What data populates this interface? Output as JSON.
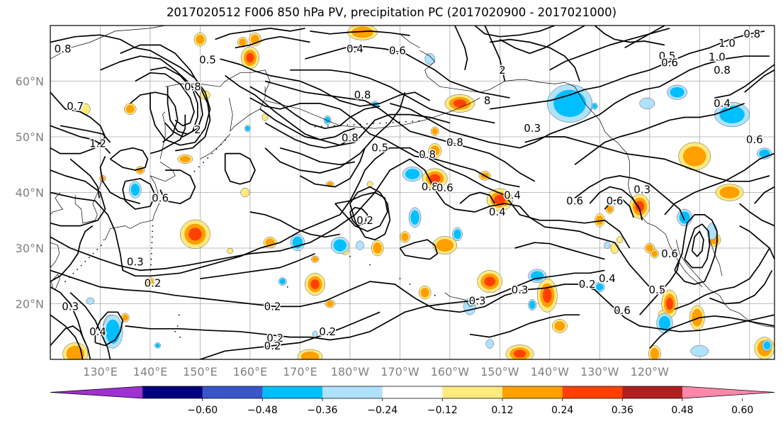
{
  "title": "2017020512 F006 850 hPa PV, precipitation PC (2017020900 - 2017021000)",
  "map": {
    "lat_ticks": [
      "60°N",
      "50°N",
      "40°N",
      "30°N",
      "20°N"
    ],
    "lon_ticks": [
      "130°E",
      "140°E",
      "150°E",
      "160°E",
      "170°E",
      "180°W",
      "170°W",
      "160°W",
      "150°W",
      "140°W",
      "130°W",
      "120°W"
    ],
    "contour_labels": [
      {
        "text": "0.8",
        "lon": 122.5,
        "lat": 65.8
      },
      {
        "text": "0.7",
        "lon": 125.0,
        "lat": 55.5
      },
      {
        "text": "1.2",
        "lon": 129.5,
        "lat": 48.8
      },
      {
        "text": "0.8",
        "lon": 148.5,
        "lat": 59.0
      },
      {
        "text": "2",
        "lon": 149.5,
        "lat": 51.3
      },
      {
        "text": "0.5",
        "lon": 151.5,
        "lat": 63.8
      },
      {
        "text": "0.6",
        "lon": 142.0,
        "lat": 39.0
      },
      {
        "text": "0.4",
        "lon": 181.0,
        "lat": 65.8
      },
      {
        "text": "0.6",
        "lon": 189.5,
        "lat": 65.5
      },
      {
        "text": "0.8",
        "lon": 182.5,
        "lat": 57.5
      },
      {
        "text": "0.8",
        "lon": 180.0,
        "lat": 49.8
      },
      {
        "text": "0.5",
        "lon": 186.0,
        "lat": 48.0
      },
      {
        "text": "0.2",
        "lon": 183.0,
        "lat": 35.0
      },
      {
        "text": "0.3",
        "lon": 137.0,
        "lat": 27.5
      },
      {
        "text": "0.2",
        "lon": 140.5,
        "lat": 23.7
      },
      {
        "text": "0.2",
        "lon": 164.5,
        "lat": 19.5
      },
      {
        "text": "0.2",
        "lon": 165.0,
        "lat": 13.8
      },
      {
        "text": "0.2",
        "lon": 164.5,
        "lat": 12.4
      },
      {
        "text": "0.2",
        "lon": 175.5,
        "lat": 15.0
      },
      {
        "text": "0.4",
        "lon": 129.5,
        "lat": 15.0
      },
      {
        "text": "0.3",
        "lon": 124.0,
        "lat": 19.5
      },
      {
        "text": "0.4",
        "lon": 209.5,
        "lat": 36.5
      },
      {
        "text": "0.8",
        "lon": 195.5,
        "lat": 46.8
      },
      {
        "text": "0.8",
        "lon": 196.0,
        "lat": 41.0
      },
      {
        "text": "0.6",
        "lon": 199.0,
        "lat": 40.8
      },
      {
        "text": "0.8",
        "lon": 201.0,
        "lat": 49.0
      },
      {
        "text": "0.4",
        "lon": 212.5,
        "lat": 39.5
      },
      {
        "text": "8",
        "lon": 207.5,
        "lat": 56.5
      },
      {
        "text": "0.3",
        "lon": 216.5,
        "lat": 51.5
      },
      {
        "text": "0.3",
        "lon": 214.0,
        "lat": 22.5
      },
      {
        "text": "0.3",
        "lon": 205.5,
        "lat": 20.5
      },
      {
        "text": "0.6",
        "lon": 225.0,
        "lat": 38.5
      },
      {
        "text": "0.3",
        "lon": 238.5,
        "lat": 40.5
      },
      {
        "text": "0.2",
        "lon": 227.5,
        "lat": 23.5
      },
      {
        "text": "0.4",
        "lon": 231.5,
        "lat": 24.5
      },
      {
        "text": "0.6",
        "lon": 234.5,
        "lat": 18.8
      },
      {
        "text": "0.5",
        "lon": 241.5,
        "lat": 22.5
      },
      {
        "text": "0.6",
        "lon": 244.0,
        "lat": 29.0
      },
      {
        "text": "0.5",
        "lon": 243.5,
        "lat": 64.5
      },
      {
        "text": "0.6",
        "lon": 244.0,
        "lat": 63.3
      },
      {
        "text": "1.0",
        "lon": 255.5,
        "lat": 66.8
      },
      {
        "text": "1.0",
        "lon": 253.5,
        "lat": 64.3
      },
      {
        "text": "0.8",
        "lon": 254.5,
        "lat": 62.0
      },
      {
        "text": "0.8",
        "lon": 260.5,
        "lat": 68.5
      },
      {
        "text": "0.6",
        "lon": 261.0,
        "lat": 49.5
      },
      {
        "text": "0.4",
        "lon": 254.5,
        "lat": 56.0
      },
      {
        "text": "0.6",
        "lon": 233.0,
        "lat": 38.5
      },
      {
        "text": "2",
        "lon": 210.5,
        "lat": 62.0
      }
    ]
  },
  "colorbar": {
    "ticks": [
      "−0.60",
      "−0.48",
      "−0.36",
      "−0.24",
      "−0.12",
      "0.12",
      "0.24",
      "0.36",
      "0.48",
      "0.60"
    ],
    "colors": [
      "#a030d0",
      "#000080",
      "#3a55c8",
      "#00bfff",
      "#b0e2ff",
      "#ffffff",
      "#ffea80",
      "#ffa000",
      "#ff4000",
      "#b02020",
      "#ff88aa"
    ]
  },
  "colors": {
    "pos1": "#ffea80",
    "pos2": "#ffa000",
    "pos3": "#ff4000",
    "neg1": "#b0e2ff",
    "neg2": "#00bfff",
    "neg3": "#3a55c8",
    "grid": "#aaaaaa",
    "tick_text": "#808080"
  }
}
